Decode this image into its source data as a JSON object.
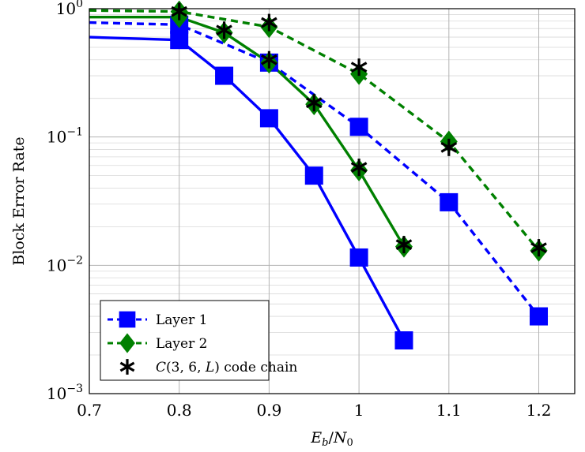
{
  "chart_data": {
    "type": "line",
    "y_scale": "log",
    "grid": true,
    "xlabel": "E_b/N_0",
    "ylabel": "Block Error Rate",
    "xlim": [
      0.7,
      1.24
    ],
    "ylim": [
      0.001,
      1
    ],
    "xticks": [
      {
        "v": 0.7,
        "label": "0.7"
      },
      {
        "v": 0.8,
        "label": "0.8"
      },
      {
        "v": 0.9,
        "label": "0.9"
      },
      {
        "v": 1.0,
        "label": "1"
      },
      {
        "v": 1.1,
        "label": "1.1"
      },
      {
        "v": 1.2,
        "label": "1.2"
      }
    ],
    "yticks": [
      {
        "v": 1,
        "exp": "0"
      },
      {
        "v": 0.1,
        "exp": "−1"
      },
      {
        "v": 0.01,
        "exp": "−2"
      },
      {
        "v": 0.001,
        "exp": "−3"
      }
    ],
    "legend_position": "bottom-left",
    "legend": [
      {
        "label": "Layer 1",
        "marker": "square",
        "color": "#0000ff"
      },
      {
        "label": "Layer 2",
        "marker": "diamond",
        "color": "#008000"
      },
      {
        "label_prefix": "C",
        "label_args": "(3, 6, ",
        "label_var": "L",
        "label_close": ")",
        "label_suffix": " code chain",
        "marker": "asterisk",
        "color": "#000000"
      }
    ],
    "series": [
      {
        "group": "Layer 1",
        "style": "solid",
        "color": "#0000ff",
        "marker": "square",
        "x": [
          0.7,
          0.8,
          0.85,
          0.9,
          0.95,
          1.0,
          1.05
        ],
        "y": [
          0.6,
          0.57,
          0.3,
          0.14,
          0.05,
          0.0115,
          0.0026
        ]
      },
      {
        "group": "Layer 1",
        "style": "dashed",
        "color": "#0000ff",
        "marker": "square",
        "x": [
          0.7,
          0.8,
          0.9,
          1.0,
          1.1,
          1.2
        ],
        "y": [
          0.78,
          0.75,
          0.38,
          0.12,
          0.031,
          0.004
        ]
      },
      {
        "group": "Layer 2",
        "style": "solid",
        "color": "#008000",
        "marker": "diamond",
        "x": [
          0.7,
          0.8,
          0.85,
          0.9,
          0.95,
          1.0,
          1.05
        ],
        "y": [
          0.86,
          0.86,
          0.65,
          0.38,
          0.18,
          0.055,
          0.014
        ]
      },
      {
        "group": "Layer 2",
        "style": "dashed",
        "color": "#008000",
        "marker": "diamond",
        "x": [
          0.7,
          0.8,
          0.9,
          1.0,
          1.1,
          1.2
        ],
        "y": [
          0.97,
          0.95,
          0.72,
          0.31,
          0.092,
          0.013
        ]
      },
      {
        "group": "code chain",
        "style": "none",
        "color": "#000000",
        "marker": "asterisk",
        "x": [
          0.8,
          0.85,
          0.9,
          0.9,
          0.95,
          1.0,
          1.0,
          1.05,
          1.1,
          1.2
        ],
        "y": [
          0.95,
          0.68,
          0.78,
          0.4,
          0.185,
          0.058,
          0.35,
          0.0145,
          0.083,
          0.0137
        ]
      }
    ]
  }
}
